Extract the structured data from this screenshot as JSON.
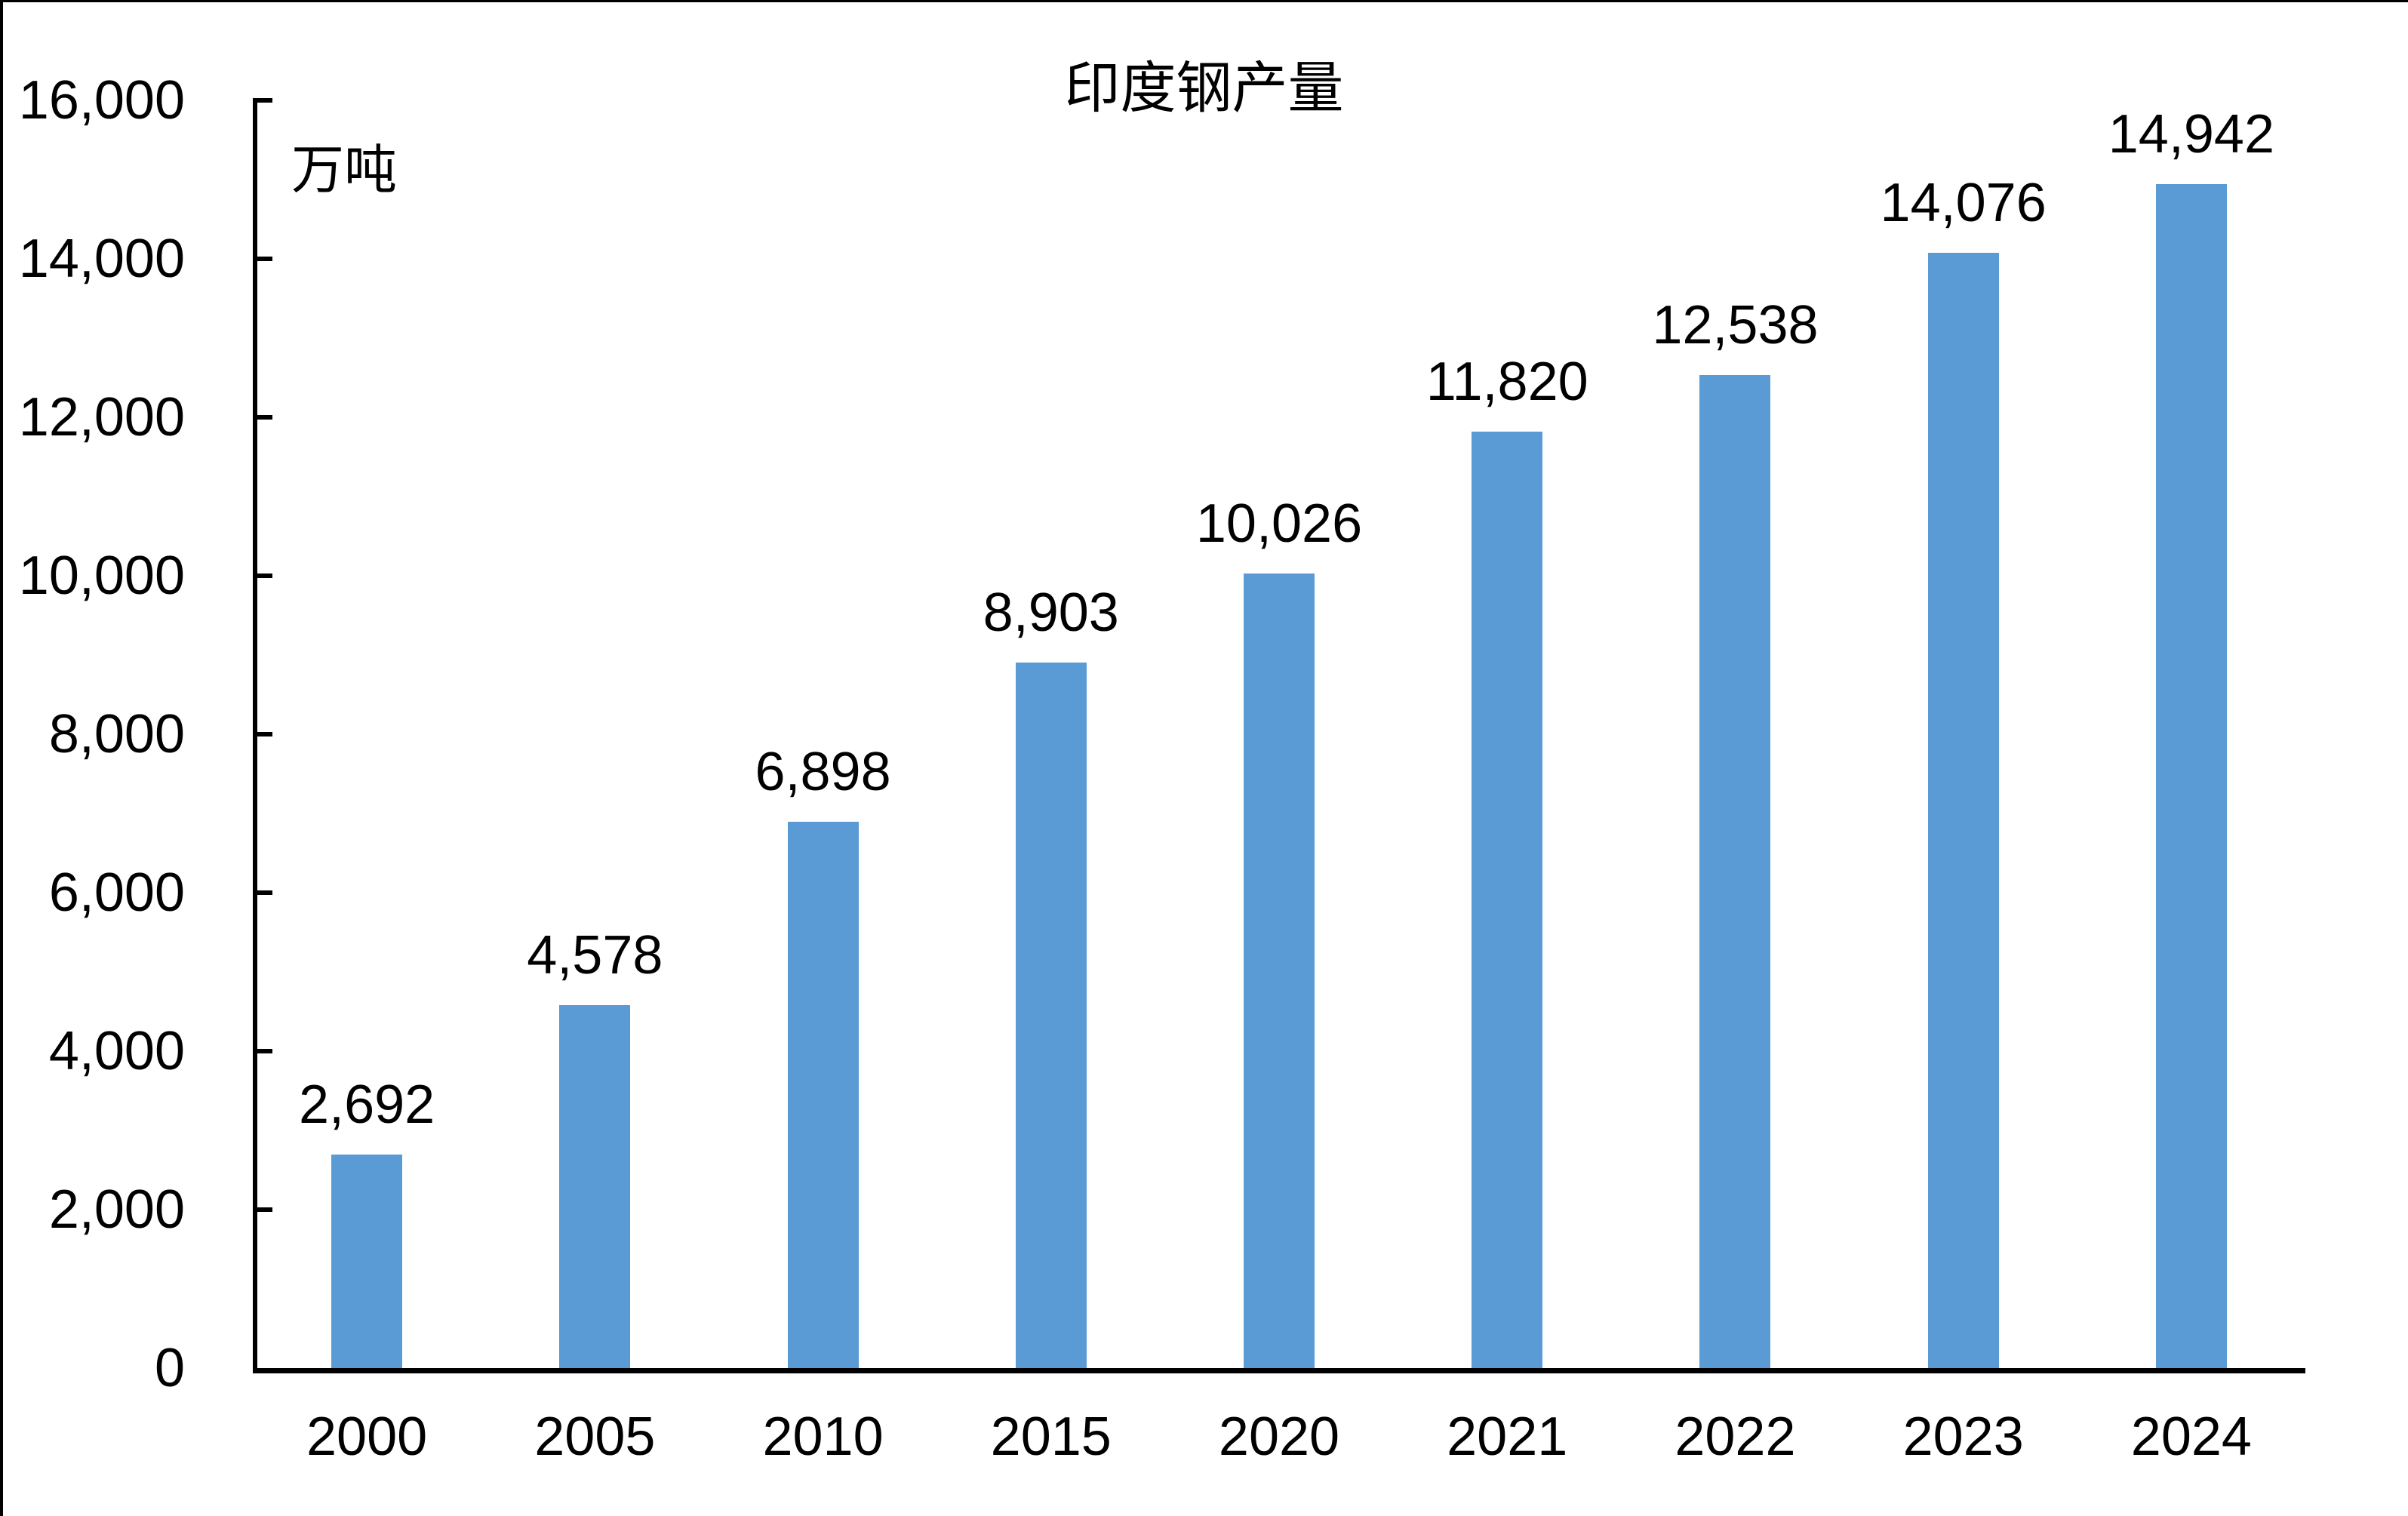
{
  "title": "印度钢产量",
  "unit_label": "万吨",
  "colors": {
    "bar": "#5B9BD5",
    "axis": "#000000",
    "text": "#000000",
    "background": "#FFFFFF"
  },
  "chart_data": {
    "type": "bar",
    "title": "印度钢产量",
    "ylabel": "万吨",
    "xlabel": "",
    "categories": [
      "2000",
      "2005",
      "2010",
      "2015",
      "2020",
      "2021",
      "2022",
      "2023",
      "2024"
    ],
    "values": [
      2692,
      4578,
      6898,
      8903,
      10026,
      11820,
      12538,
      14076,
      14942
    ],
    "data_labels": [
      "2,692",
      "4,578",
      "6,898",
      "8,903",
      "10,026",
      "11,820",
      "12,538",
      "14,076",
      "14,942"
    ],
    "ylim": [
      0,
      16000
    ],
    "ytick_interval": 2000,
    "yticks": [
      0,
      2000,
      4000,
      6000,
      8000,
      10000,
      12000,
      14000,
      16000
    ],
    "ytick_labels": [
      "0",
      "2,000",
      "4,000",
      "6,000",
      "8,000",
      "10,000",
      "12,000",
      "14,000",
      "16,000"
    ],
    "grid": false,
    "legend_position": "none",
    "bar_color": "#5B9BD5"
  }
}
